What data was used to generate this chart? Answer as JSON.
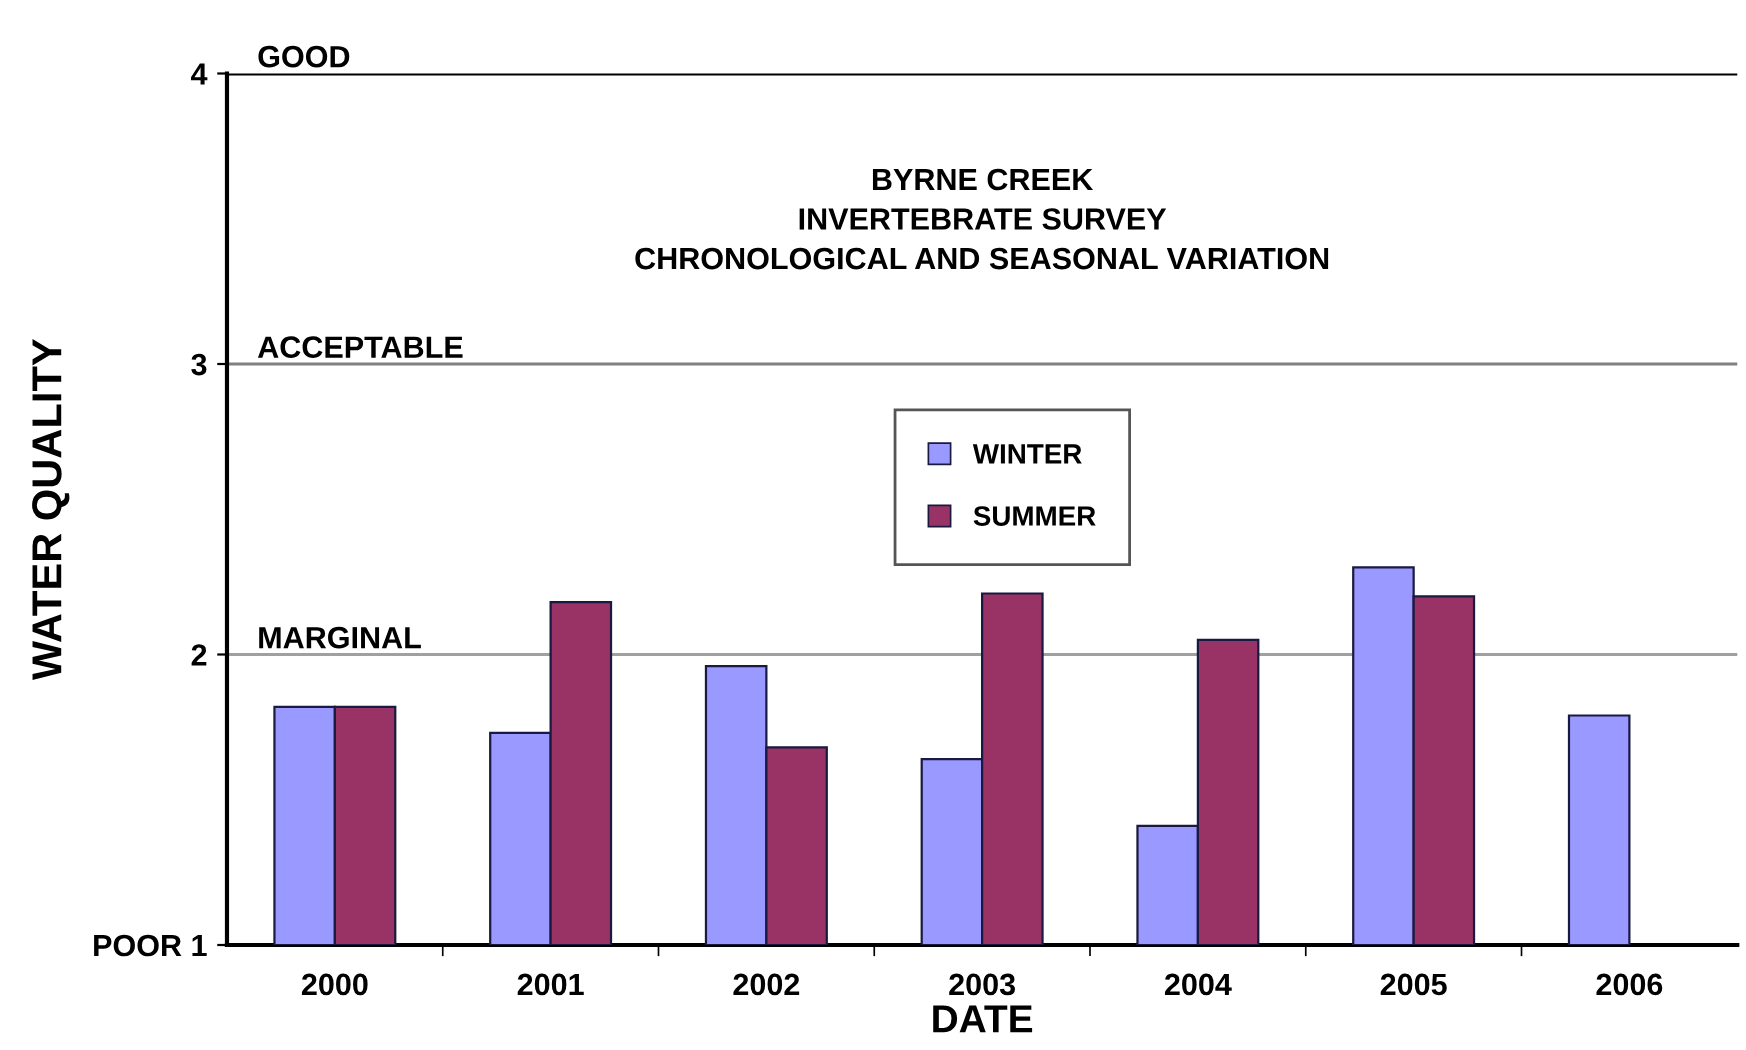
{
  "chart_data": {
    "type": "bar",
    "title": "BYRNE CREEK\nINVERTEBRATE SURVEY\nCHRONOLOGICAL AND SEASONAL VARIATION",
    "xlabel": "DATE",
    "ylabel": "WATER QUALITY",
    "categories": [
      "2000",
      "2001",
      "2002",
      "2003",
      "2004",
      "2005",
      "2006"
    ],
    "series": [
      {
        "name": "WINTER",
        "color": "#9999ff",
        "values": [
          1.82,
          1.73,
          1.96,
          1.64,
          1.41,
          2.3,
          1.79
        ]
      },
      {
        "name": "SUMMER",
        "color": "#993366",
        "values": [
          1.82,
          2.18,
          1.68,
          2.21,
          2.05,
          2.2,
          null
        ]
      }
    ],
    "ylim": [
      1,
      4
    ],
    "yticks": [
      {
        "value": 1,
        "label": "POOR 1"
      },
      2,
      3,
      4
    ],
    "ref_lines": [
      {
        "axis": "y",
        "value": 4,
        "label": "GOOD",
        "color": "#000000"
      },
      {
        "axis": "y",
        "value": 3,
        "label": "ACCEPTABLE",
        "color": "#808080"
      },
      {
        "axis": "y",
        "value": 2,
        "label": "MARGINAL",
        "color": "#a0a0a0"
      }
    ],
    "grid": false,
    "legend": "top"
  }
}
